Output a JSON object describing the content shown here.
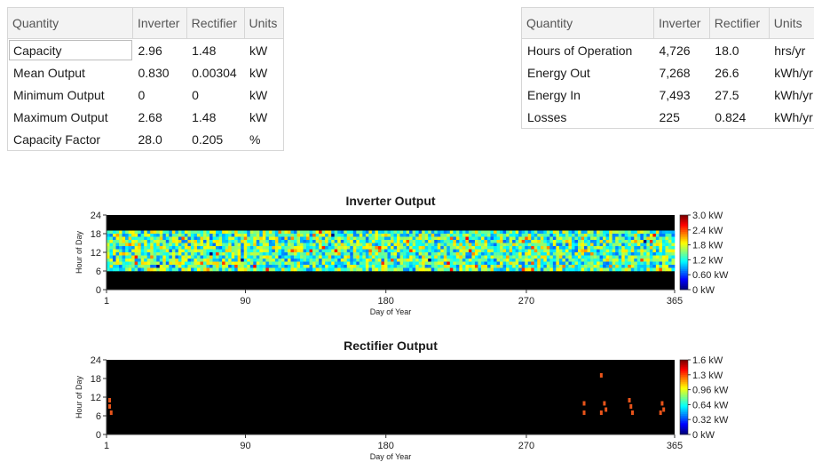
{
  "table_left": {
    "headers": [
      "Quantity",
      "Inverter",
      "Rectifier",
      "Units"
    ],
    "rows": [
      [
        "Capacity",
        "2.96",
        "1.48",
        "kW"
      ],
      [
        "Mean Output",
        "0.830",
        "0.00304",
        "kW"
      ],
      [
        "Minimum Output",
        "0",
        "0",
        "kW"
      ],
      [
        "Maximum Output",
        "2.68",
        "1.48",
        "kW"
      ],
      [
        "Capacity Factor",
        "28.0",
        "0.205",
        "%"
      ]
    ]
  },
  "table_right": {
    "headers": [
      "Quantity",
      "Inverter",
      "Rectifier",
      "Units"
    ],
    "rows": [
      [
        "Hours of Operation",
        "4,726",
        "18.0",
        "hrs/yr"
      ],
      [
        "Energy Out",
        "7,268",
        "26.6",
        "kWh/yr"
      ],
      [
        "Energy In",
        "7,493",
        "27.5",
        "kWh/yr"
      ],
      [
        "Losses",
        "225",
        "0.824",
        "kWh/yr"
      ]
    ]
  },
  "chart_data": [
    {
      "type": "heatmap",
      "title": "Inverter Output",
      "xlabel": "Day of Year",
      "ylabel": "Hour of Day",
      "xlim": [
        1,
        365
      ],
      "ylim": [
        0,
        24
      ],
      "x_ticks": [
        "1",
        "90",
        "180",
        "270",
        "365"
      ],
      "y_ticks": [
        "0",
        "6",
        "12",
        "18",
        "24"
      ],
      "colorbar": {
        "min": 0,
        "max": 3.0,
        "labels": [
          "3.0 kW",
          "2.4 kW",
          "1.8 kW",
          "1.2 kW",
          "0.60 kW",
          "0 kW"
        ]
      },
      "active_hours": [
        6,
        19
      ]
    },
    {
      "type": "heatmap",
      "title": "Rectifier Output",
      "xlabel": "Day of Year",
      "ylabel": "Hour of Day",
      "xlim": [
        1,
        365
      ],
      "ylim": [
        0,
        24
      ],
      "x_ticks": [
        "1",
        "90",
        "180",
        "270",
        "365"
      ],
      "y_ticks": [
        "0",
        "6",
        "12",
        "18",
        "24"
      ],
      "colorbar": {
        "min": 0,
        "max": 1.6,
        "labels": [
          "1.6 kW",
          "1.3 kW",
          "0.96 kW",
          "0.64 kW",
          "0.32 kW",
          "0 kW"
        ]
      },
      "points": [
        {
          "day": 3,
          "hour": 11
        },
        {
          "day": 3,
          "hour": 9
        },
        {
          "day": 4,
          "hour": 7
        },
        {
          "day": 307,
          "hour": 10
        },
        {
          "day": 307,
          "hour": 7
        },
        {
          "day": 318,
          "hour": 19
        },
        {
          "day": 320,
          "hour": 10
        },
        {
          "day": 321,
          "hour": 8
        },
        {
          "day": 318,
          "hour": 7
        },
        {
          "day": 336,
          "hour": 11
        },
        {
          "day": 337,
          "hour": 9
        },
        {
          "day": 338,
          "hour": 7
        },
        {
          "day": 357,
          "hour": 10
        },
        {
          "day": 358,
          "hour": 8
        },
        {
          "day": 356,
          "hour": 7
        }
      ]
    }
  ]
}
